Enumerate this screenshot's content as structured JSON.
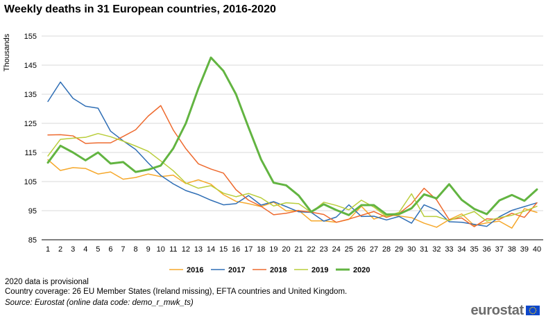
{
  "chart_data": {
    "type": "line",
    "title": "Weekly deaths in 31 European countries, 2016-2020",
    "ylabel": "Thousands",
    "xlabel": "",
    "ylim": [
      85,
      155
    ],
    "yticks": [
      85,
      95,
      105,
      115,
      125,
      135,
      145,
      155
    ],
    "x": [
      1,
      2,
      3,
      4,
      5,
      6,
      7,
      8,
      9,
      10,
      11,
      12,
      13,
      14,
      15,
      16,
      17,
      18,
      19,
      20,
      21,
      22,
      23,
      24,
      25,
      26,
      27,
      28,
      29,
      30,
      31,
      32,
      33,
      34,
      35,
      36,
      37,
      38,
      39,
      40
    ],
    "grid": "horizontal",
    "legend_position": "bottom",
    "series": [
      {
        "name": "2016",
        "color": "#f6a82b",
        "width": 1.5,
        "values": [
          112.5,
          108.8,
          109.8,
          109.5,
          107.6,
          108.3,
          105.8,
          106.4,
          107.6,
          106.7,
          107.2,
          104.3,
          105.6,
          104.1,
          100.5,
          98.2,
          97.4,
          96.4,
          97.9,
          94.9,
          95.1,
          91.5,
          91.5,
          91.0,
          92.0,
          96.5,
          92.1,
          93.6,
          93.2,
          92.6,
          90.7,
          89.3,
          91.9,
          93.9,
          89.9,
          90.8,
          91.4,
          89.0,
          95.7,
          94.4
        ]
      },
      {
        "name": "2017",
        "color": "#2f6eb5",
        "width": 1.5,
        "values": [
          132.5,
          139.2,
          133.6,
          130.9,
          130.2,
          122.3,
          119.0,
          116.0,
          111.4,
          107.1,
          104.2,
          101.9,
          100.5,
          98.6,
          97.0,
          97.4,
          100.2,
          96.9,
          98.1,
          96.4,
          94.6,
          94.4,
          91.4,
          92.8,
          97.0,
          93.0,
          93.1,
          91.8,
          93.0,
          90.7,
          97.0,
          95.2,
          91.2,
          91.0,
          90.3,
          89.6,
          92.9,
          95.1,
          96.4,
          97.7
        ]
      },
      {
        "name": "2018",
        "color": "#ee6a2e",
        "width": 1.5,
        "values": [
          121.0,
          121.1,
          120.7,
          118.1,
          118.3,
          118.3,
          120.5,
          122.8,
          127.5,
          131.1,
          122.7,
          116.3,
          111.1,
          109.3,
          107.9,
          102.2,
          98.6,
          96.5,
          93.6,
          94.1,
          95.0,
          94.5,
          93.7,
          91.0,
          92.1,
          93.4,
          94.7,
          92.7,
          94.0,
          97.4,
          102.7,
          98.7,
          91.9,
          92.5,
          89.5,
          92.2,
          92.0,
          94.1,
          92.7,
          97.7
        ]
      },
      {
        "name": "2019",
        "color": "#b9cd3a",
        "width": 1.5,
        "values": [
          113.8,
          119.5,
          119.9,
          120.2,
          121.5,
          120.4,
          118.9,
          117.2,
          115.4,
          112.1,
          108.7,
          104.5,
          102.7,
          103.6,
          101.0,
          99.8,
          100.9,
          99.4,
          96.6,
          97.7,
          97.4,
          94.4,
          97.9,
          96.8,
          95.3,
          98.6,
          96.2,
          93.0,
          94.4,
          100.8,
          93.0,
          93.0,
          91.6,
          93.2,
          94.7,
          91.4,
          92.6,
          93.4,
          94.8,
          96.5
        ]
      },
      {
        "name": "2020",
        "color": "#62b441",
        "width": 3,
        "values": [
          111.5,
          117.3,
          115.0,
          112.3,
          115.0,
          111.2,
          111.7,
          108.3,
          109.1,
          110.5,
          116.4,
          125.0,
          137.0,
          147.6,
          143.0,
          135.0,
          123.6,
          112.6,
          104.6,
          103.7,
          100.2,
          94.6,
          97.2,
          95.2,
          93.5,
          96.9,
          96.9,
          93.7,
          93.8,
          95.8,
          100.6,
          99.2,
          104.1,
          98.7,
          95.6,
          93.8,
          98.5,
          100.4,
          98.4,
          102.3
        ]
      }
    ]
  },
  "notes": {
    "provisional": "2020 data is provisional",
    "coverage": "Country coverage: 26 EU Member States (Ireland missing), EFTA countries and United Kingdom.",
    "source": "Source: Eurostat (online data code: demo_r_mwk_ts)"
  },
  "logo": {
    "text": "eurostat",
    "flag_color": "#0e47cb",
    "star_color": "#ffd617"
  }
}
